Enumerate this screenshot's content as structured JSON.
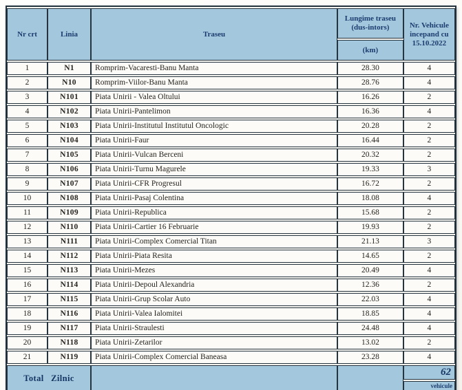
{
  "table": {
    "headers": {
      "nr_crt": "Nr crt",
      "linia": "Linia",
      "traseu": "Traseu",
      "lungime_line1": "Lungime traseu",
      "lungime_line2": "(dus-intors)",
      "lungime_unit": "(km)",
      "vehicule_line1": "Nr. Vehicule",
      "vehicule_line2": "incepand cu",
      "vehicule_line3": "15.10.2022"
    },
    "rows": [
      {
        "nr": "1",
        "linia": "N1",
        "traseu": "Romprim-Vacaresti-Banu Manta",
        "lungime": "28.30",
        "vehicule": "4"
      },
      {
        "nr": "2",
        "linia": "N10",
        "traseu": "Romprim-Viilor-Banu Manta",
        "lungime": "28.76",
        "vehicule": "4"
      },
      {
        "nr": "3",
        "linia": "N101",
        "traseu": "Piata Unirii - Valea Oltului",
        "lungime": "16.26",
        "vehicule": "2"
      },
      {
        "nr": "4",
        "linia": "N102",
        "traseu": "Piata Unirii-Pantelimon",
        "lungime": "16.36",
        "vehicule": "4"
      },
      {
        "nr": "5",
        "linia": "N103",
        "traseu": "Piata Unirii-Institutul Institutul Oncologic",
        "lungime": "20.28",
        "vehicule": "2"
      },
      {
        "nr": "6",
        "linia": "N104",
        "traseu": "Piata Unirii-Faur",
        "lungime": "16.44",
        "vehicule": "2"
      },
      {
        "nr": "7",
        "linia": "N105",
        "traseu": "Piata Unirii-Vulcan Berceni",
        "lungime": "20.32",
        "vehicule": "2"
      },
      {
        "nr": "8",
        "linia": "N106",
        "traseu": "Piata Unirii-Turnu Magurele",
        "lungime": "19.33",
        "vehicule": "3"
      },
      {
        "nr": "9",
        "linia": "N107",
        "traseu": "Piata Unirii-CFR Progresul",
        "lungime": "16.72",
        "vehicule": "2"
      },
      {
        "nr": "10",
        "linia": "N108",
        "traseu": "Piata Unirii-Pasaj Colentina",
        "lungime": "18.08",
        "vehicule": "4"
      },
      {
        "nr": "11",
        "linia": "N109",
        "traseu": "Piata Unirii-Republica",
        "lungime": "15.68",
        "vehicule": "2"
      },
      {
        "nr": "12",
        "linia": "N110",
        "traseu": "Piata Unirii-Cartier 16 Februarie",
        "lungime": "19.93",
        "vehicule": "2"
      },
      {
        "nr": "13",
        "linia": "N111",
        "traseu": "Piata Unirii-Complex Comercial Titan",
        "lungime": "21.13",
        "vehicule": "3"
      },
      {
        "nr": "14",
        "linia": "N112",
        "traseu": "Piata Unirii-Piata Resita",
        "lungime": "14.65",
        "vehicule": "2"
      },
      {
        "nr": "15",
        "linia": "N113",
        "traseu": "Piata Unirii-Mezes",
        "lungime": "20.49",
        "vehicule": "4"
      },
      {
        "nr": "16",
        "linia": "N114",
        "traseu": "Piata Unirii-Depoul Alexandria",
        "lungime": "12.36",
        "vehicule": "2"
      },
      {
        "nr": "17",
        "linia": "N115",
        "traseu": "Piata Unirii-Grup Scolar Auto",
        "lungime": "22.03",
        "vehicule": "4"
      },
      {
        "nr": "18",
        "linia": "N116",
        "traseu": "Piata Unirii-Valea Ialomitei",
        "lungime": "18.85",
        "vehicule": "4"
      },
      {
        "nr": "19",
        "linia": "N117",
        "traseu": "Piata Unirii-Straulesti",
        "lungime": "24.48",
        "vehicule": "4"
      },
      {
        "nr": "20",
        "linia": "N118",
        "traseu": "Piata Unirii-Zetarilor",
        "lungime": "13.02",
        "vehicule": "2"
      },
      {
        "nr": "21",
        "linia": "N119",
        "traseu": "Piata Unirii-Complex Comercial Baneasa",
        "lungime": "23.28",
        "vehicule": "4"
      }
    ],
    "total": {
      "label": "Total Zilnic",
      "value": "62",
      "unit": "vehicule"
    }
  },
  "colors": {
    "header_background": "#a3c8dd",
    "header_text": "#1b3c6e",
    "border": "#25343f",
    "row_background": "#fcfbf7",
    "body_text": "#26221d",
    "total_unit_background": "#b7d4e4"
  }
}
